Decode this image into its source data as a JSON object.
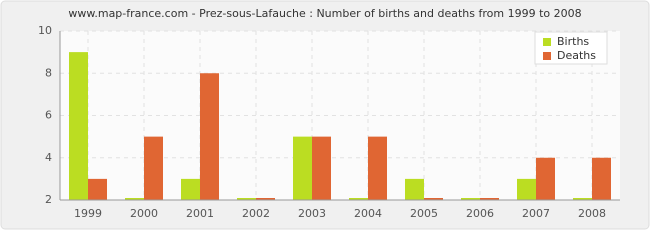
{
  "chart_data": {
    "type": "bar",
    "title": "www.map-france.com - Prez-sous-Lafauche : Number of births and deaths from 1999 to 2008",
    "categories": [
      "1999",
      "2000",
      "2001",
      "2002",
      "2003",
      "2004",
      "2005",
      "2006",
      "2007",
      "2008"
    ],
    "series": [
      {
        "name": "Births",
        "color": "#bbdd22",
        "values": [
          9,
          2,
          3,
          2,
          5,
          2,
          3,
          2,
          3,
          2
        ]
      },
      {
        "name": "Deaths",
        "color": "#e06633",
        "values": [
          3,
          5,
          8,
          2,
          5,
          5,
          2,
          2,
          4,
          4
        ]
      }
    ],
    "ylim": [
      2,
      10
    ],
    "yticks": [
      2,
      4,
      6,
      8,
      10
    ],
    "grid": true,
    "legend": "top-right"
  }
}
